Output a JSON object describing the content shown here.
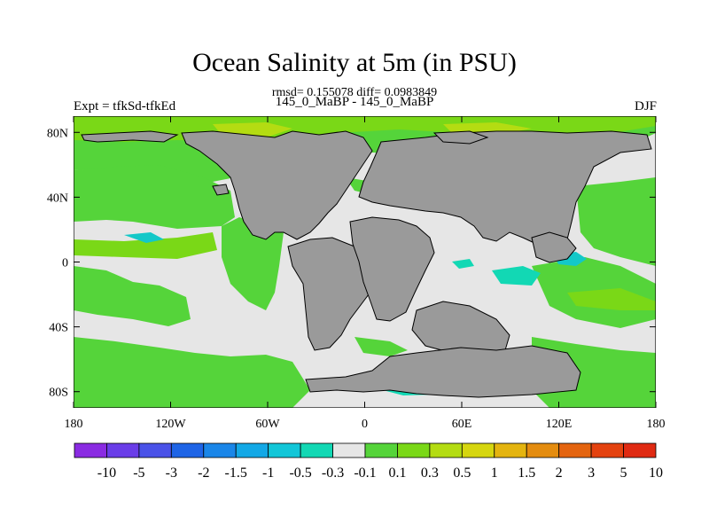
{
  "title": "Ocean Salinity at 5m (in PSU)",
  "stats": "rmsd= 0.155078 diff= 0.0983849",
  "runs": "145_0_MaBP - 145_0_MaBP",
  "expt": "Expt = tfkSd-tfkEd",
  "season": "DJF",
  "y_ticks": [
    {
      "label": "80N",
      "lat": 80
    },
    {
      "label": "40N",
      "lat": 40
    },
    {
      "label": "0",
      "lat": 0
    },
    {
      "label": "40S",
      "lat": -40
    },
    {
      "label": "80S",
      "lat": -80
    }
  ],
  "x_ticks": [
    {
      "label": "180",
      "lon": -180
    },
    {
      "label": "120W",
      "lon": -120
    },
    {
      "label": "60W",
      "lon": -60
    },
    {
      "label": "0",
      "lon": 0
    },
    {
      "label": "60E",
      "lon": 60
    },
    {
      "label": "120E",
      "lon": 120
    },
    {
      "label": "180",
      "lon": 180
    }
  ],
  "colorbar": {
    "colors": [
      "#8a2be2",
      "#6a3de8",
      "#4a52e8",
      "#1e64e6",
      "#1a86e8",
      "#13a8e6",
      "#12c6d8",
      "#12d8b4",
      "#e6e6e6",
      "#55d43a",
      "#7ad817",
      "#b4dc12",
      "#d6d60f",
      "#e4b40f",
      "#e48c0f",
      "#e4640f",
      "#e4420f",
      "#e02a12"
    ],
    "labels": [
      "-10",
      "-5",
      "-3",
      "-2",
      "-1.5",
      "-1",
      "-0.5",
      "-0.3",
      "-0.1",
      "0.1",
      "0.3",
      "0.5",
      "1",
      "1.5",
      "2",
      "3",
      "5",
      "10"
    ]
  },
  "colors": {
    "land": "#9a9a9a",
    "ocean_neutral": "#e6e6e6",
    "ocean_fresh_slight": "#55d43a",
    "ocean_fresh": "#7ad817",
    "ocean_yellow": "#b4dc12",
    "ocean_cyan": "#12d8b4",
    "ocean_teal": "#13c8c8"
  }
}
